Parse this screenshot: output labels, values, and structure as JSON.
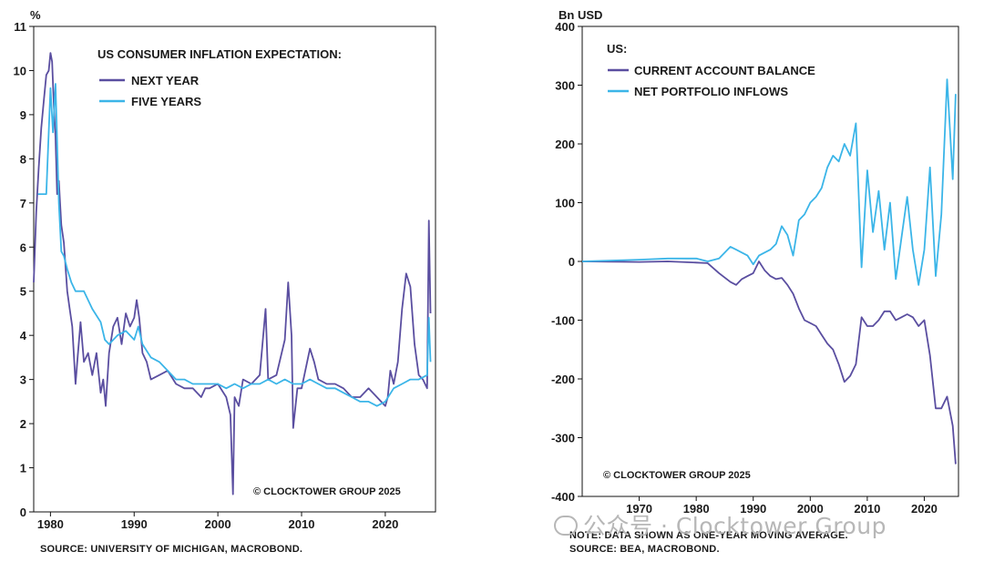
{
  "chart_data": [
    {
      "type": "line",
      "ylabel": "%",
      "title": "US CONSUMER INFLATION EXPECTATION:",
      "copyright": "© CLOCKTOWER GROUP 2025",
      "source": "SOURCE: UNIVERSITY OF MICHIGAN, MACROBOND.",
      "xlim": [
        1978,
        2026
      ],
      "ylim": [
        0,
        11
      ],
      "x_ticks": [
        "1980",
        "1990",
        "2000",
        "2010",
        "2020"
      ],
      "y_ticks": [
        "0",
        "1",
        "2",
        "3",
        "4",
        "5",
        "6",
        "7",
        "8",
        "9",
        "10",
        "11"
      ],
      "legend_position": "top-left",
      "series": [
        {
          "name": "NEXT YEAR",
          "color": "#5a4ea0",
          "x": [
            1978.0,
            1978.3,
            1978.6,
            1978.9,
            1979.2,
            1979.5,
            1979.8,
            1980.0,
            1980.2,
            1980.4,
            1980.6,
            1980.8,
            1981.0,
            1981.3,
            1981.6,
            1982.0,
            1982.3,
            1982.6,
            1983.0,
            1983.2,
            1983.6,
            1984.0,
            1984.5,
            1985.0,
            1985.5,
            1986.0,
            1986.3,
            1986.6,
            1987.0,
            1987.5,
            1988.0,
            1988.5,
            1989.0,
            1989.5,
            1990.0,
            1990.3,
            1990.6,
            1991.0,
            1991.5,
            1992.0,
            1993.0,
            1994.0,
            1995.0,
            1996.0,
            1997.0,
            1998.0,
            1998.5,
            1999.0,
            2000.0,
            2001.0,
            2001.5,
            2001.8,
            2002.0,
            2002.5,
            2003.0,
            2004.0,
            2005.0,
            2005.7,
            2006.0,
            2007.0,
            2008.0,
            2008.4,
            2008.8,
            2009.0,
            2009.5,
            2010.0,
            2011.0,
            2011.5,
            2012.0,
            2013.0,
            2014.0,
            2015.0,
            2016.0,
            2017.0,
            2018.0,
            2019.0,
            2020.0,
            2020.3,
            2020.6,
            2021.0,
            2021.5,
            2022.0,
            2022.5,
            2023.0,
            2023.5,
            2024.0,
            2024.5,
            2025.0,
            2025.2,
            2025.4
          ],
          "values": [
            5.2,
            6.8,
            7.8,
            8.7,
            9.3,
            9.9,
            10.0,
            10.4,
            10.2,
            9.2,
            8.5,
            7.2,
            7.5,
            6.5,
            6.1,
            5.0,
            4.6,
            4.2,
            2.9,
            3.4,
            4.3,
            3.4,
            3.6,
            3.1,
            3.6,
            2.7,
            3.0,
            2.4,
            3.6,
            4.2,
            4.4,
            3.8,
            4.5,
            4.2,
            4.4,
            4.8,
            4.4,
            3.6,
            3.4,
            3.0,
            3.1,
            3.2,
            2.9,
            2.8,
            2.8,
            2.6,
            2.8,
            2.8,
            2.9,
            2.6,
            2.2,
            0.4,
            2.6,
            2.4,
            3.0,
            2.9,
            3.1,
            4.6,
            3.0,
            3.1,
            3.9,
            5.2,
            4.0,
            1.9,
            2.8,
            2.8,
            3.7,
            3.4,
            3.0,
            2.9,
            2.9,
            2.8,
            2.6,
            2.6,
            2.8,
            2.6,
            2.4,
            2.6,
            3.2,
            2.9,
            3.4,
            4.6,
            5.4,
            5.1,
            3.8,
            3.1,
            3.0,
            2.8,
            6.6,
            4.5
          ]
        },
        {
          "name": "FIVE YEARS",
          "color": "#3bb5e8",
          "x": [
            1978.5,
            1979.0,
            1979.5,
            1980.0,
            1980.3,
            1980.6,
            1981.0,
            1981.3,
            1981.6,
            1982.0,
            1982.5,
            1983.0,
            1984.0,
            1985.0,
            1986.0,
            1986.5,
            1987.0,
            1988.0,
            1989.0,
            1990.0,
            1990.5,
            1991.0,
            1992.0,
            1993.0,
            1994.0,
            1995.0,
            1996.0,
            1997.0,
            1998.0,
            1999.0,
            2000.0,
            2001.0,
            2002.0,
            2003.0,
            2004.0,
            2005.0,
            2006.0,
            2007.0,
            2008.0,
            2009.0,
            2010.0,
            2011.0,
            2012.0,
            2013.0,
            2014.0,
            2015.0,
            2016.0,
            2017.0,
            2018.0,
            2019.0,
            2020.0,
            2021.0,
            2022.0,
            2023.0,
            2024.0,
            2025.0,
            2025.2,
            2025.4
          ],
          "values": [
            7.2,
            7.2,
            7.2,
            9.6,
            8.6,
            9.7,
            7.0,
            5.9,
            5.8,
            5.5,
            5.2,
            5.0,
            5.0,
            4.6,
            4.3,
            3.9,
            3.8,
            4.0,
            4.1,
            3.9,
            4.2,
            3.8,
            3.5,
            3.4,
            3.2,
            3.0,
            3.0,
            2.9,
            2.9,
            2.9,
            2.9,
            2.8,
            2.9,
            2.8,
            2.9,
            2.9,
            3.0,
            2.9,
            3.0,
            2.9,
            2.9,
            3.0,
            2.9,
            2.8,
            2.8,
            2.7,
            2.6,
            2.5,
            2.5,
            2.4,
            2.5,
            2.8,
            2.9,
            3.0,
            3.0,
            3.1,
            4.4,
            3.4
          ]
        }
      ]
    },
    {
      "type": "line",
      "ylabel": "Bn USD",
      "title": "US:",
      "copyright": "© CLOCKTOWER GROUP 2025",
      "note": "NOTE: DATA SHOWN AS ONE-YEAR MOVING AVERAGE.",
      "source": "SOURCE: BEA, MACROBOND.",
      "xlim": [
        1960,
        2026
      ],
      "ylim": [
        -400,
        400
      ],
      "x_ticks": [
        "1970",
        "1980",
        "1990",
        "2000",
        "2010",
        "2020"
      ],
      "y_ticks": [
        "400",
        "300",
        "200",
        "100",
        "0",
        "-100",
        "-200",
        "-300",
        "-400"
      ],
      "legend_position": "top-left",
      "series": [
        {
          "name": "CURRENT ACCOUNT BALANCE",
          "color": "#5a4ea0",
          "x": [
            1960,
            1970,
            1975,
            1980,
            1982,
            1984,
            1986,
            1987,
            1988,
            1989,
            1990,
            1991,
            1992,
            1993,
            1994,
            1995,
            1996,
            1997,
            1998,
            1999,
            2000,
            2001,
            2002,
            2003,
            2004,
            2005,
            2006,
            2007,
            2008,
            2009,
            2010,
            2011,
            2012,
            2013,
            2014,
            2015,
            2016,
            2017,
            2018,
            2019,
            2020,
            2021,
            2022,
            2023,
            2024,
            2025,
            2025.5
          ],
          "values": [
            0,
            -1,
            0,
            -2,
            -3,
            -20,
            -35,
            -40,
            -30,
            -25,
            -20,
            0,
            -15,
            -25,
            -30,
            -28,
            -40,
            -55,
            -80,
            -100,
            -105,
            -110,
            -125,
            -140,
            -150,
            -175,
            -205,
            -195,
            -175,
            -95,
            -110,
            -110,
            -100,
            -85,
            -85,
            -100,
            -95,
            -90,
            -95,
            -110,
            -100,
            -160,
            -250,
            -250,
            -230,
            -280,
            -345
          ]
        },
        {
          "name": "NET PORTFOLIO INFLOWS",
          "color": "#3bb5e8",
          "x": [
            1960,
            1970,
            1975,
            1978,
            1980,
            1982,
            1984,
            1986,
            1987,
            1988,
            1989,
            1990,
            1991,
            1992,
            1993,
            1994,
            1995,
            1996,
            1997,
            1998,
            1999,
            2000,
            2001,
            2002,
            2003,
            2004,
            2005,
            2006,
            2007,
            2008,
            2009,
            2010,
            2011,
            2012,
            2013,
            2014,
            2015,
            2016,
            2017,
            2018,
            2019,
            2020,
            2021,
            2022,
            2023,
            2024,
            2025,
            2025.5
          ],
          "values": [
            0,
            3,
            5,
            5,
            5,
            0,
            5,
            25,
            20,
            15,
            10,
            -5,
            10,
            15,
            20,
            30,
            60,
            45,
            10,
            70,
            80,
            100,
            110,
            125,
            160,
            180,
            170,
            200,
            180,
            235,
            -10,
            155,
            50,
            120,
            20,
            100,
            -30,
            40,
            110,
            20,
            -40,
            20,
            160,
            -25,
            80,
            310,
            140,
            285
          ]
        }
      ]
    }
  ],
  "watermark": "公众号 · Clocktower Group"
}
